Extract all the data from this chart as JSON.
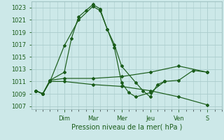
{
  "title": "",
  "xlabel": "Pression niveau de la mer( hPa )",
  "bg_color": "#cce8e8",
  "grid_color": "#aacccc",
  "line_color": "#1a5c1a",
  "ylim": [
    1006.5,
    1024.0
  ],
  "yticks": [
    1007,
    1009,
    1011,
    1013,
    1015,
    1017,
    1019,
    1021,
    1023
  ],
  "day_labels": [
    "Dim",
    "Mar",
    "Mer",
    "Jeu",
    "Ven",
    "S"
  ],
  "day_positions": [
    2,
    4,
    6,
    8,
    10,
    12
  ],
  "xlim": [
    -0.3,
    13.0
  ],
  "series": [
    {
      "x": [
        0,
        0.5,
        1,
        2,
        3,
        4,
        4.5,
        5,
        5.5,
        6,
        7,
        7.5,
        8,
        8.5,
        9
      ],
      "y": [
        1009.5,
        1009.0,
        1011.0,
        1016.8,
        1021.0,
        1023.2,
        1022.5,
        1019.5,
        1017.0,
        1013.5,
        1010.8,
        1009.5,
        1008.5,
        1010.5,
        1011.0
      ]
    },
    {
      "x": [
        0,
        0.5,
        1,
        2,
        2.5,
        3,
        3.5,
        4,
        4.5,
        5,
        5.5,
        6,
        6.5,
        7,
        8,
        9,
        10,
        11,
        12
      ],
      "y": [
        1009.5,
        1009.0,
        1011.2,
        1012.5,
        1018.0,
        1021.5,
        1022.5,
        1023.5,
        1022.8,
        1019.5,
        1016.5,
        1010.8,
        1009.2,
        1008.5,
        1009.2,
        1011.0,
        1011.2,
        1012.8,
        1012.5
      ]
    },
    {
      "x": [
        0,
        0.5,
        1,
        2,
        4,
        6,
        8,
        10,
        12
      ],
      "y": [
        1009.5,
        1009.0,
        1011.2,
        1011.5,
        1011.5,
        1011.8,
        1012.5,
        1013.5,
        1012.5
      ]
    },
    {
      "x": [
        0,
        0.5,
        1,
        2,
        4,
        6,
        8,
        10,
        12
      ],
      "y": [
        1009.5,
        1009.0,
        1011.0,
        1011.0,
        1010.5,
        1010.2,
        1009.5,
        1008.5,
        1007.2
      ]
    }
  ]
}
